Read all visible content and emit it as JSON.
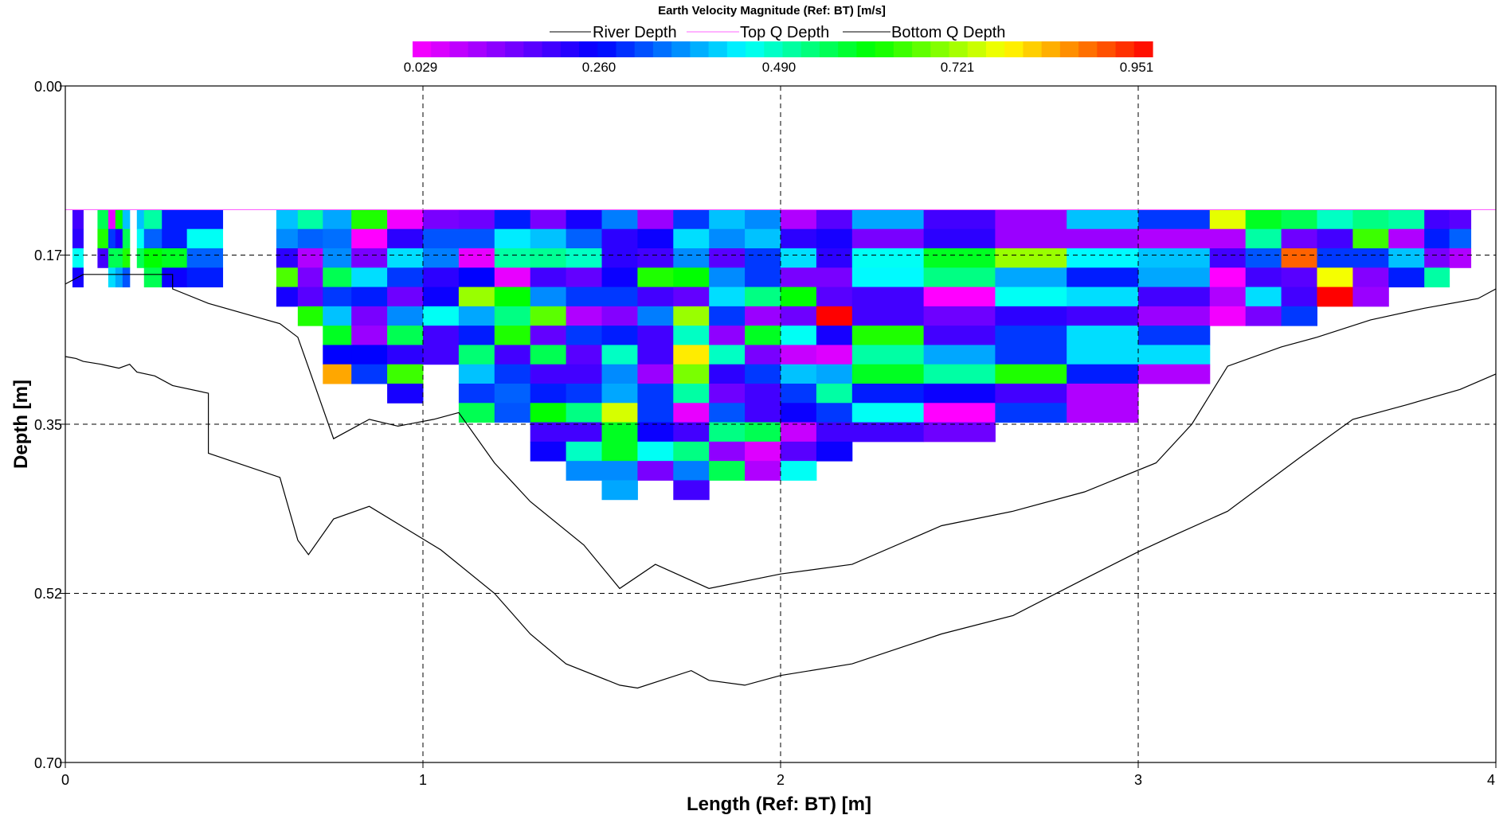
{
  "chart_data": {
    "type": "heatmap",
    "title": "Earth Velocity Magnitude (Ref: BT) [m/s]",
    "xlabel": "Length (Ref: BT) [m]",
    "ylabel": "Depth [m]",
    "xlim": [
      0,
      4
    ],
    "ylim": [
      0.7,
      0.0
    ],
    "x_ticks": [
      "0",
      "1",
      "2",
      "3",
      "4"
    ],
    "y_ticks": [
      "0.00",
      "0.17",
      "0.35",
      "0.52",
      "0.70"
    ],
    "grid": true,
    "legend": {
      "placement": "top-center",
      "entries": [
        {
          "name": "River Depth",
          "color": "#000000"
        },
        {
          "name": "Top Q Depth",
          "color": "#ff66ff"
        },
        {
          "name": "Bottom Q Depth",
          "color": "#000000"
        }
      ]
    },
    "colorbar": {
      "min": 0.029,
      "max": 0.951,
      "tick_labels": [
        "0.029",
        "0.260",
        "0.490",
        "0.721",
        "0.951"
      ]
    },
    "top_q_depth": 0.128,
    "cell_height": 0.02,
    "lines": [
      {
        "name": "River Depth",
        "color": "#000000",
        "points": [
          [
            0,
            0.205
          ],
          [
            0.05,
            0.195
          ],
          [
            0.3,
            0.195
          ],
          [
            0.3,
            0.21
          ],
          [
            0.4,
            0.225
          ],
          [
            0.6,
            0.246
          ],
          [
            0.65,
            0.26
          ],
          [
            0.75,
            0.365
          ],
          [
            0.85,
            0.345
          ],
          [
            0.93,
            0.352
          ],
          [
            1.03,
            0.345
          ],
          [
            1.1,
            0.338
          ],
          [
            1.2,
            0.39
          ],
          [
            1.3,
            0.43
          ],
          [
            1.45,
            0.475
          ],
          [
            1.55,
            0.52
          ],
          [
            1.65,
            0.495
          ],
          [
            1.8,
            0.52
          ],
          [
            2.0,
            0.505
          ],
          [
            2.2,
            0.495
          ],
          [
            2.45,
            0.455
          ],
          [
            2.65,
            0.44
          ],
          [
            2.85,
            0.42
          ],
          [
            3.05,
            0.39
          ],
          [
            3.15,
            0.35
          ],
          [
            3.25,
            0.29
          ],
          [
            3.4,
            0.27
          ],
          [
            3.5,
            0.26
          ],
          [
            3.65,
            0.242
          ],
          [
            3.8,
            0.23
          ],
          [
            3.95,
            0.22
          ],
          [
            4,
            0.21
          ]
        ]
      },
      {
        "name": "Bottom Q Depth",
        "color": "#000000",
        "points": [
          [
            0,
            0.28
          ],
          [
            0.03,
            0.282
          ],
          [
            0.05,
            0.285
          ],
          [
            0.1,
            0.288
          ],
          [
            0.15,
            0.292
          ],
          [
            0.18,
            0.288
          ],
          [
            0.2,
            0.296
          ],
          [
            0.25,
            0.3
          ],
          [
            0.3,
            0.31
          ],
          [
            0.4,
            0.318
          ],
          [
            0.4,
            0.38
          ],
          [
            0.6,
            0.405
          ],
          [
            0.65,
            0.47
          ],
          [
            0.68,
            0.485
          ],
          [
            0.75,
            0.448
          ],
          [
            0.85,
            0.435
          ],
          [
            1.05,
            0.48
          ],
          [
            1.2,
            0.525
          ],
          [
            1.3,
            0.567
          ],
          [
            1.4,
            0.598
          ],
          [
            1.55,
            0.62
          ],
          [
            1.6,
            0.623
          ],
          [
            1.75,
            0.605
          ],
          [
            1.8,
            0.615
          ],
          [
            1.9,
            0.62
          ],
          [
            2.0,
            0.61
          ],
          [
            2.2,
            0.598
          ],
          [
            2.45,
            0.567
          ],
          [
            2.65,
            0.548
          ],
          [
            2.85,
            0.51
          ],
          [
            3.0,
            0.482
          ],
          [
            3.1,
            0.465
          ],
          [
            3.25,
            0.44
          ],
          [
            3.45,
            0.385
          ],
          [
            3.6,
            0.345
          ],
          [
            3.75,
            0.33
          ],
          [
            3.9,
            0.314
          ],
          [
            4,
            0.298
          ]
        ]
      }
    ],
    "ensembles": [
      {
        "x0": 0.02,
        "x1": 0.05,
        "v": [
          0.2,
          0.22,
          0.45,
          0.24
        ]
      },
      {
        "x0": 0.09,
        "x1": 0.12,
        "v": [
          0.55,
          0.62,
          0.2
        ]
      },
      {
        "x0": 0.12,
        "x1": 0.14,
        "v": [
          0.05,
          0.3,
          0.55,
          0.42
        ]
      },
      {
        "x0": 0.14,
        "x1": 0.16,
        "v": [
          0.6,
          0.24,
          0.55,
          0.38
        ]
      },
      {
        "x0": 0.16,
        "x1": 0.18,
        "v": [
          0.4,
          0.55,
          0.62,
          0.32
        ]
      },
      {
        "x0": 0.2,
        "x1": 0.22,
        "v": [
          0.4,
          0.45,
          0.55
        ]
      },
      {
        "x0": 0.22,
        "x1": 0.27,
        "v": [
          0.5,
          0.33,
          0.6,
          0.55
        ]
      },
      {
        "x0": 0.27,
        "x1": 0.34,
        "v": [
          0.28,
          0.28,
          0.58,
          0.25
        ]
      },
      {
        "x0": 0.34,
        "x1": 0.44,
        "v": [
          0.28,
          0.45,
          0.33,
          0.28
        ]
      },
      {
        "x0": 0.59,
        "x1": 0.65,
        "v": [
          0.4,
          0.36,
          0.22,
          0.65,
          0.24
        ]
      },
      {
        "x0": 0.65,
        "x1": 0.72,
        "v": [
          0.5,
          0.33,
          0.1,
          0.15,
          0.18,
          0.62
        ]
      },
      {
        "x0": 0.72,
        "x1": 0.8,
        "v": [
          0.38,
          0.34,
          0.36,
          0.55,
          0.3,
          0.4,
          0.58,
          0.26,
          0.83
        ]
      },
      {
        "x0": 0.8,
        "x1": 0.9,
        "v": [
          0.62,
          0.02,
          0.15,
          0.42,
          0.28,
          0.15,
          0.12,
          0.26,
          0.3
        ]
      },
      {
        "x0": 0.9,
        "x1": 1.0,
        "v": [
          0.04,
          0.22,
          0.42,
          0.3,
          0.16,
          0.36,
          0.55,
          0.22,
          0.64,
          0.24
        ]
      },
      {
        "x0": 1.0,
        "x1": 1.1,
        "v": [
          0.15,
          0.32,
          0.35,
          0.22,
          0.25,
          0.45,
          0.2,
          0.2
        ]
      },
      {
        "x0": 1.1,
        "x1": 1.2,
        "v": [
          0.16,
          0.32,
          0.05,
          0.26,
          0.7,
          0.38,
          0.28,
          0.53,
          0.4,
          0.3,
          0.55
        ]
      },
      {
        "x0": 1.2,
        "x1": 1.3,
        "v": [
          0.28,
          0.43,
          0.5,
          0.05,
          0.6,
          0.52,
          0.62,
          0.2,
          0.3,
          0.33,
          0.32
        ]
      },
      {
        "x0": 1.3,
        "x1": 1.4,
        "v": [
          0.15,
          0.4,
          0.51,
          0.2,
          0.36,
          0.66,
          0.17,
          0.55,
          0.2,
          0.28,
          0.6,
          0.2,
          0.25
        ]
      },
      {
        "x0": 1.4,
        "x1": 1.5,
        "v": [
          0.24,
          0.33,
          0.48,
          0.17,
          0.3,
          0.1,
          0.3,
          0.18,
          0.2,
          0.3,
          0.52,
          0.2,
          0.48,
          0.36
        ]
      },
      {
        "x0": 1.5,
        "x1": 1.6,
        "v": [
          0.35,
          0.22,
          0.22,
          0.25,
          0.3,
          0.14,
          0.28,
          0.48,
          0.36,
          0.38,
          0.74,
          0.58,
          0.58,
          0.36,
          0.38
        ]
      },
      {
        "x0": 1.6,
        "x1": 1.7,
        "v": [
          0.12,
          0.25,
          0.2,
          0.62,
          0.2,
          0.35,
          0.2,
          0.2,
          0.12,
          0.3,
          0.3,
          0.25,
          0.45,
          0.15
        ]
      },
      {
        "x0": 1.7,
        "x1": 1.8,
        "v": [
          0.3,
          0.42,
          0.36,
          0.6,
          0.17,
          0.7,
          0.48,
          0.78,
          0.68,
          0.5,
          0.05,
          0.2,
          0.52,
          0.35,
          0.2
        ]
      },
      {
        "x0": 1.8,
        "x1": 1.9,
        "v": [
          0.4,
          0.36,
          0.18,
          0.36,
          0.42,
          0.3,
          0.13,
          0.48,
          0.22,
          0.16,
          0.32,
          0.52,
          0.13,
          0.55
        ]
      },
      {
        "x0": 1.9,
        "x1": 2.0,
        "v": [
          0.36,
          0.4,
          0.3,
          0.3,
          0.52,
          0.12,
          0.58,
          0.15,
          0.3,
          0.2,
          0.2,
          0.55,
          0.06,
          0.1
        ]
      },
      {
        "x0": 2.0,
        "x1": 2.1,
        "v": [
          0.1,
          0.22,
          0.42,
          0.15,
          0.6,
          0.16,
          0.45,
          0.08,
          0.4,
          0.3,
          0.25,
          0.08,
          0.18,
          0.45
        ]
      },
      {
        "x0": 2.1,
        "x1": 2.2,
        "v": [
          0.18,
          0.24,
          0.22,
          0.15,
          0.18,
          0.95,
          0.24,
          0.06,
          0.38,
          0.5,
          0.3,
          0.2,
          0.25
        ]
      },
      {
        "x0": 2.2,
        "x1": 2.4,
        "v": [
          0.38,
          0.15,
          0.45,
          0.44,
          0.2,
          0.2,
          0.62,
          0.5,
          0.58,
          0.28,
          0.45,
          0.2
        ]
      },
      {
        "x0": 2.4,
        "x1": 2.6,
        "v": [
          0.2,
          0.22,
          0.58,
          0.52,
          0.02,
          0.16,
          0.2,
          0.38,
          0.5,
          0.25,
          0.02,
          0.16
        ]
      },
      {
        "x0": 2.6,
        "x1": 2.8,
        "v": [
          0.12,
          0.12,
          0.7,
          0.38,
          0.45,
          0.22,
          0.3,
          0.3,
          0.62,
          0.2,
          0.3
        ]
      },
      {
        "x0": 2.8,
        "x1": 3.0,
        "v": [
          0.4,
          0.12,
          0.44,
          0.28,
          0.42,
          0.2,
          0.42,
          0.42,
          0.28,
          0.1,
          0.1
        ]
      },
      {
        "x0": 3.0,
        "x1": 3.2,
        "v": [
          0.3,
          0.1,
          0.4,
          0.38,
          0.2,
          0.12,
          0.3,
          0.42,
          0.1
        ]
      },
      {
        "x0": 3.2,
        "x1": 3.3,
        "v": [
          0.75,
          0.1,
          0.2,
          0.02,
          0.1,
          0.04
        ]
      },
      {
        "x0": 3.3,
        "x1": 3.4,
        "v": [
          0.58,
          0.5,
          0.32,
          0.2,
          0.42,
          0.15
        ]
      },
      {
        "x0": 3.4,
        "x1": 3.5,
        "v": [
          0.55,
          0.16,
          0.88,
          0.18,
          0.2,
          0.3
        ]
      },
      {
        "x0": 3.5,
        "x1": 3.6,
        "v": [
          0.48,
          0.2,
          0.3,
          0.76,
          0.95
        ]
      },
      {
        "x0": 3.6,
        "x1": 3.7,
        "v": [
          0.52,
          0.64,
          0.3,
          0.14,
          0.12
        ]
      },
      {
        "x0": 3.7,
        "x1": 3.8,
        "v": [
          0.5,
          0.1,
          0.4,
          0.28
        ]
      },
      {
        "x0": 3.8,
        "x1": 3.87,
        "v": [
          0.2,
          0.28,
          0.15,
          0.5
        ]
      },
      {
        "x0": 3.87,
        "x1": 3.93,
        "v": [
          0.18,
          0.33,
          0.1
        ]
      }
    ]
  }
}
